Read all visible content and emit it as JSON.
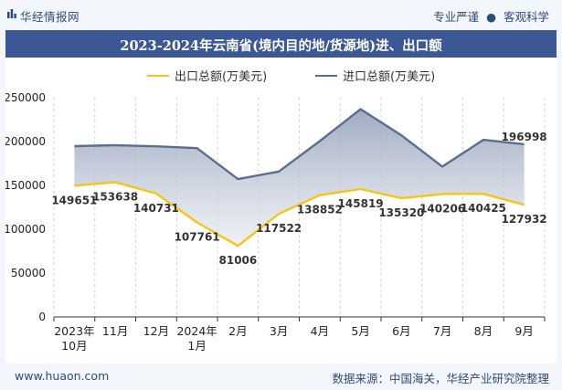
{
  "header": {
    "brand": "华经情报网",
    "tagline_left": "专业严谨",
    "tagline_right": "客观科学"
  },
  "chart_data": {
    "type": "area",
    "title": "2023-2024年云南省(境内目的地/货源地)进、出口额",
    "categories": [
      "2023年\n10月",
      "11月",
      "12月",
      "2024年\n1月",
      "2月",
      "3月",
      "4月",
      "5月",
      "6月",
      "7月",
      "8月",
      "9月"
    ],
    "series": [
      {
        "name": "出口总额(万美元)",
        "color": "#f5c518",
        "values": [
          149651,
          153638,
          140731,
          107761,
          81006,
          117522,
          138852,
          145819,
          135320,
          140206,
          140425,
          127932
        ]
      },
      {
        "name": "进口总额(万美元)",
        "color": "#5b6e91",
        "values": [
          194800,
          195800,
          194600,
          192500,
          157200,
          165800,
          200500,
          237000,
          207000,
          171500,
          202000,
          196998
        ]
      }
    ],
    "data_labels": {
      "出口总额(万美元)": [
        "149651",
        "153638",
        "140731",
        "107761",
        "81006",
        "117522",
        "138852",
        "145819",
        "135320",
        "140206",
        "140425",
        "127932"
      ],
      "进口总额(万美元)": [
        "",
        "",
        "",
        "",
        "",
        "",
        "",
        "",
        "",
        "",
        "",
        "196998"
      ]
    },
    "ylim": [
      0,
      250000
    ],
    "yticks": [
      "0",
      "50000",
      "100000",
      "150000",
      "200000",
      "250000"
    ],
    "legend": "top",
    "grid": "x-dashed"
  },
  "footer": {
    "website": "www.huaon.com",
    "source": "数据来源：中国海关，华经产业研究院整理"
  }
}
